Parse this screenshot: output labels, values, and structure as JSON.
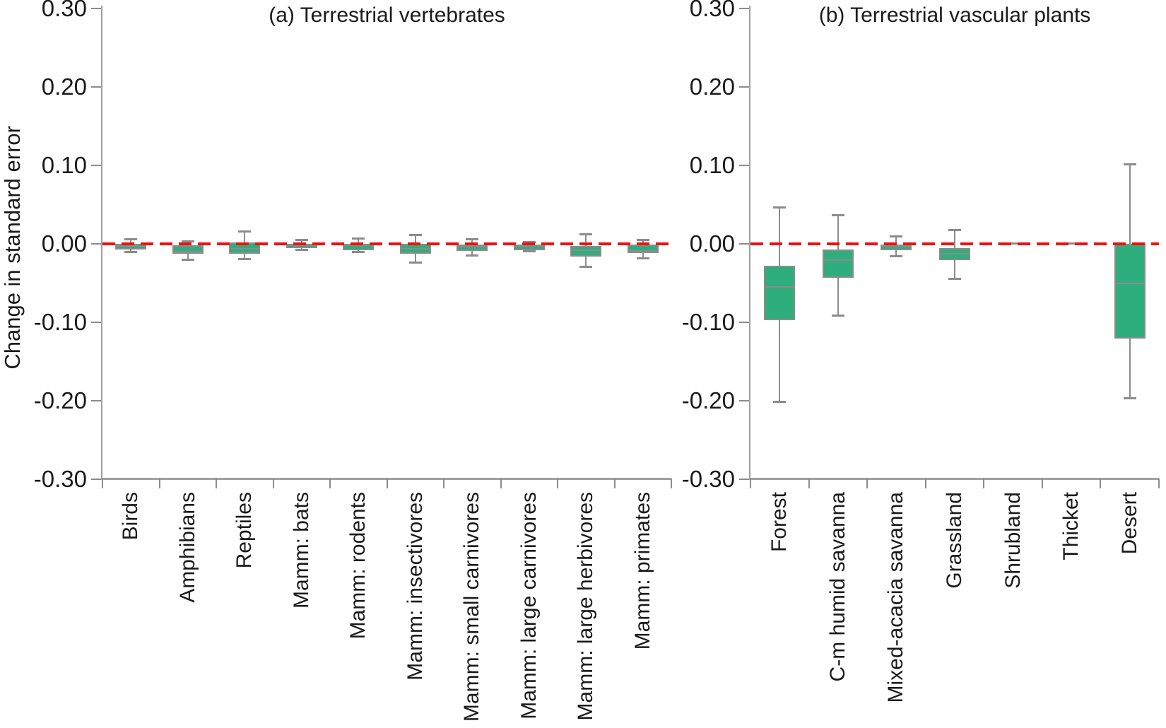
{
  "figure": {
    "y_axis": {
      "title": "Change in standard error",
      "tick_labels": [
        "0.30",
        "0.20",
        "0.10",
        "0.00",
        "-0.10",
        "-0.20",
        "-0.30"
      ],
      "tick_values": [
        0.3,
        0.2,
        0.1,
        0.0,
        -0.1,
        -0.2,
        -0.3
      ],
      "min": -0.3,
      "max": 0.3
    },
    "colors": {
      "box_fill": "#2eae7d",
      "box_stroke": "#8c8c8c",
      "whisker": "#8c8c8c",
      "axis": "#a0a0a0",
      "tick": "#8c8c8c",
      "zero_line": "#ee1111",
      "text": "#1a1a1a"
    }
  },
  "chart_data": [
    {
      "type": "box",
      "title": "(a) Terrestrial vertebrates",
      "ylabel": "Change in standard error",
      "ylim": [
        -0.3,
        0.3
      ],
      "zero_reference_line": true,
      "categories": [
        "Birds",
        "Amphibians",
        "Reptiles",
        "Mamm: bats",
        "Mamm: rodents",
        "Mamm: insectivores",
        "Mamm: small carnivores",
        "Mamm: large carnivores",
        "Mamm: large herbivores",
        "Mamm: primates"
      ],
      "boxes": [
        {
          "category": "Birds",
          "whisker_high": 0.006,
          "q3": 0.0,
          "median": -0.003,
          "q1": -0.007,
          "whisker_low": -0.011
        },
        {
          "category": "Amphibians",
          "whisker_high": 0.004,
          "q3": -0.002,
          "median": -0.01,
          "q1": -0.013,
          "whisker_low": -0.021
        },
        {
          "category": "Reptiles",
          "whisker_high": 0.016,
          "q3": 0.002,
          "median": -0.006,
          "q1": -0.013,
          "whisker_low": -0.02
        },
        {
          "category": "Mamm: bats",
          "whisker_high": 0.005,
          "q3": 0.0,
          "median": -0.002,
          "q1": -0.005,
          "whisker_low": -0.008
        },
        {
          "category": "Mamm: rodents",
          "whisker_high": 0.007,
          "q3": 0.0,
          "median": -0.002,
          "q1": -0.008,
          "whisker_low": -0.011
        },
        {
          "category": "Mamm: insectivores",
          "whisker_high": 0.012,
          "q3": 0.0,
          "median": -0.006,
          "q1": -0.013,
          "whisker_low": -0.024
        },
        {
          "category": "Mamm: small carnivores",
          "whisker_high": 0.006,
          "q3": -0.001,
          "median": -0.004,
          "q1": -0.009,
          "whisker_low": -0.015
        },
        {
          "category": "Mamm: large carnivores",
          "whisker_high": 0.003,
          "q3": -0.001,
          "median": -0.003,
          "q1": -0.008,
          "whisker_low": -0.01
        },
        {
          "category": "Mamm: large herbivores",
          "whisker_high": 0.013,
          "q3": -0.003,
          "median": -0.008,
          "q1": -0.016,
          "whisker_low": -0.03
        },
        {
          "category": "Mamm: primates",
          "whisker_high": 0.005,
          "q3": -0.001,
          "median": -0.009,
          "q1": -0.012,
          "whisker_low": -0.019
        }
      ]
    },
    {
      "type": "box",
      "title": "(b) Terrestrial vascular plants",
      "ylabel": "Change in standard error",
      "ylim": [
        -0.3,
        0.3
      ],
      "zero_reference_line": true,
      "categories": [
        "Forest",
        "C-m humid savanna",
        "Mixed-acacia savanna",
        "Grassland",
        "Shrubland",
        "Thicket",
        "Desert"
      ],
      "boxes": [
        {
          "category": "Forest",
          "whisker_high": 0.047,
          "q3": -0.028,
          "median": -0.055,
          "q1": -0.097,
          "whisker_low": -0.202
        },
        {
          "category": "C-m humid savanna",
          "whisker_high": 0.037,
          "q3": -0.007,
          "median": -0.021,
          "q1": -0.043,
          "whisker_low": -0.092
        },
        {
          "category": "Mixed-acacia savanna",
          "whisker_high": 0.01,
          "q3": -0.001,
          "median": -0.003,
          "q1": -0.008,
          "whisker_low": -0.016
        },
        {
          "category": "Grassland",
          "whisker_high": 0.018,
          "q3": -0.005,
          "median": -0.013,
          "q1": -0.021,
          "whisker_low": -0.045
        },
        {
          "category": "Shrubland",
          "whisker_high": 0.0,
          "q3": 0.0,
          "median": 0.0,
          "q1": 0.0,
          "whisker_low": 0.0
        },
        {
          "category": "Thicket",
          "whisker_high": 0.0,
          "q3": 0.0,
          "median": 0.0,
          "q1": 0.0,
          "whisker_low": 0.0
        },
        {
          "category": "Desert",
          "whisker_high": 0.102,
          "q3": 0.0,
          "median": -0.05,
          "q1": -0.121,
          "whisker_low": -0.197
        }
      ]
    }
  ]
}
